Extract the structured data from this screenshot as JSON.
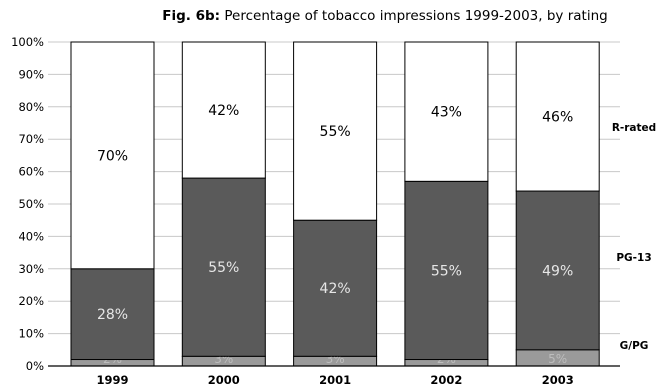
{
  "chart_data": {
    "type": "bar",
    "stacked": true,
    "title_prefix": "Fig. 6b:",
    "title": "Percentage of tobacco impressions 1999-2003, by rating",
    "categories": [
      "1999",
      "2000",
      "2001",
      "2002",
      "2003"
    ],
    "yticks": [
      "0%",
      "10%",
      "20%",
      "30%",
      "40%",
      "50%",
      "60%",
      "70%",
      "80%",
      "90%",
      "100%"
    ],
    "ylim": [
      0,
      100
    ],
    "grid": true,
    "legend_placement": "right",
    "series": [
      {
        "name": "G/PG",
        "values": [
          2,
          3,
          3,
          2,
          5
        ],
        "labels": [
          "2%",
          "3%",
          "3%",
          "2%",
          "5%"
        ],
        "color": "#9a9a9a",
        "text_color": "#bdbdbd"
      },
      {
        "name": "PG-13",
        "values": [
          28,
          55,
          42,
          55,
          49
        ],
        "labels": [
          "28%",
          "55%",
          "42%",
          "55%",
          "49%"
        ],
        "color": "#5a5a5a",
        "text_color": "#e6e6e6"
      },
      {
        "name": "R-rated",
        "values": [
          70,
          42,
          55,
          43,
          46
        ],
        "labels": [
          "70%",
          "42%",
          "55%",
          "43%",
          "46%"
        ],
        "color": "#ffffff",
        "text_color": "#000000"
      }
    ],
    "colors": {
      "outline": "#000000",
      "grid": "#c8c8c8"
    }
  }
}
